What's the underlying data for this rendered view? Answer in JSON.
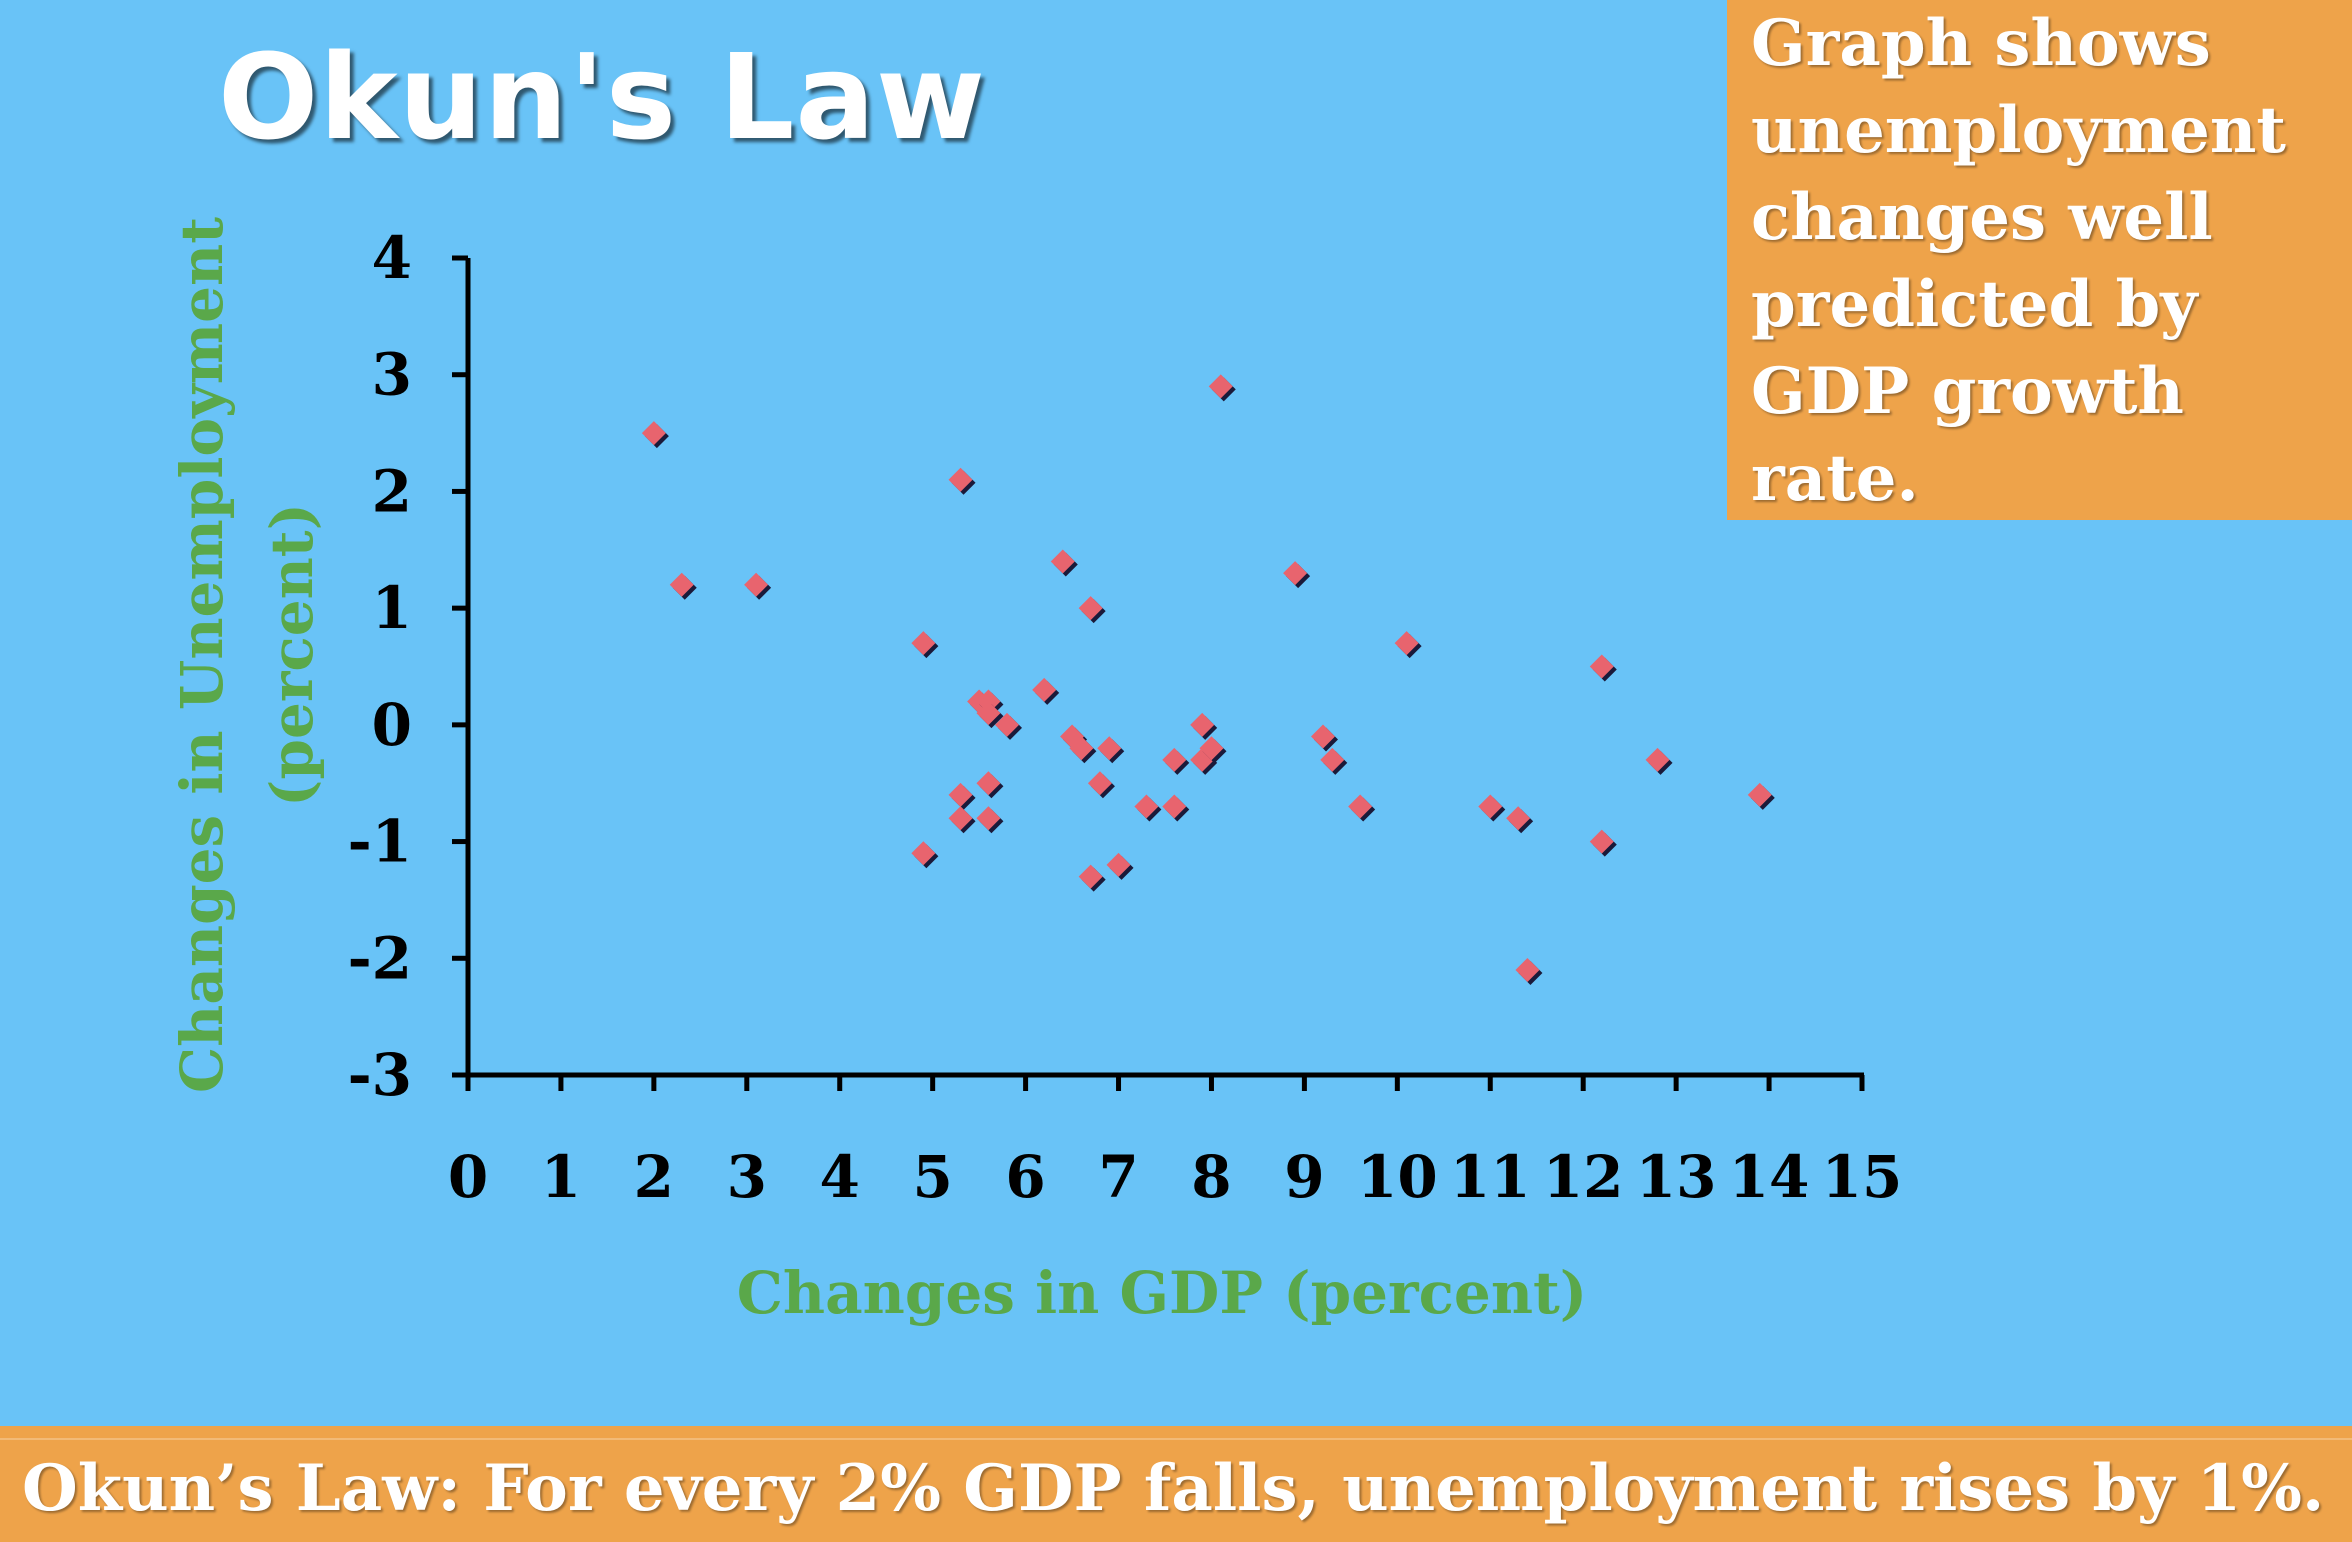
{
  "slide": {
    "title": "Okun's Law",
    "note_lines": [
      "Graph shows",
      "unemployment",
      "changes well",
      "predicted by",
      "GDP growth",
      "rate."
    ],
    "footer": "Okun’s Law: For every 2% GDP falls, unemployment rises by 1%."
  },
  "colors": {
    "background": "#69c3f7",
    "callout": "#eea34a",
    "axis_label": "#5aa84a",
    "marker": "#e8646e",
    "marker_shadow": "#1a1a3a",
    "axis": "#000000"
  },
  "chart_data": {
    "type": "scatter",
    "xlabel": "Changes in GDP (percent)",
    "ylabel_lines": [
      "Changes in Unemployment",
      "(percent)"
    ],
    "xlim": [
      0,
      15
    ],
    "ylim": [
      -3,
      4
    ],
    "xticks": [
      "0",
      "1",
      "2",
      "3",
      "4",
      "5",
      "6",
      "7",
      "8",
      "9",
      "10",
      "11",
      "12",
      "13",
      "14",
      "15"
    ],
    "yticks": [
      "4",
      "3",
      "2",
      "1",
      "0",
      "-1",
      "-2",
      "-3"
    ],
    "grid": false,
    "legend": false,
    "marker": "diamond",
    "points": [
      {
        "x": 2.0,
        "y": 2.5
      },
      {
        "x": 2.3,
        "y": 1.2
      },
      {
        "x": 3.1,
        "y": 1.2
      },
      {
        "x": 4.9,
        "y": 0.7
      },
      {
        "x": 4.9,
        "y": -1.1
      },
      {
        "x": 5.3,
        "y": 2.1
      },
      {
        "x": 5.3,
        "y": -0.6
      },
      {
        "x": 5.3,
        "y": -0.8
      },
      {
        "x": 5.5,
        "y": 0.2
      },
      {
        "x": 5.6,
        "y": 0.2
      },
      {
        "x": 5.6,
        "y": 0.1
      },
      {
        "x": 5.6,
        "y": -0.5
      },
      {
        "x": 5.6,
        "y": -0.8
      },
      {
        "x": 5.8,
        "y": 0.0
      },
      {
        "x": 6.2,
        "y": 0.3
      },
      {
        "x": 6.4,
        "y": 1.4
      },
      {
        "x": 6.5,
        "y": -0.1
      },
      {
        "x": 6.6,
        "y": -0.2
      },
      {
        "x": 6.7,
        "y": 1.0
      },
      {
        "x": 6.7,
        "y": -1.3
      },
      {
        "x": 6.8,
        "y": -0.5
      },
      {
        "x": 6.9,
        "y": -0.2
      },
      {
        "x": 7.0,
        "y": -1.2
      },
      {
        "x": 7.3,
        "y": -0.7
      },
      {
        "x": 7.6,
        "y": -0.3
      },
      {
        "x": 7.6,
        "y": -0.7
      },
      {
        "x": 7.9,
        "y": 0.0
      },
      {
        "x": 7.9,
        "y": -0.3
      },
      {
        "x": 8.0,
        "y": -0.2
      },
      {
        "x": 8.1,
        "y": 2.9
      },
      {
        "x": 8.9,
        "y": 1.3
      },
      {
        "x": 9.2,
        "y": -0.1
      },
      {
        "x": 9.3,
        "y": -0.3
      },
      {
        "x": 9.6,
        "y": -0.7
      },
      {
        "x": 10.1,
        "y": 0.7
      },
      {
        "x": 11.0,
        "y": -0.7
      },
      {
        "x": 11.3,
        "y": -0.8
      },
      {
        "x": 11.4,
        "y": -2.1
      },
      {
        "x": 12.2,
        "y": 0.5
      },
      {
        "x": 12.2,
        "y": -1.0
      },
      {
        "x": 12.8,
        "y": -0.3
      },
      {
        "x": 13.9,
        "y": -0.6
      }
    ]
  }
}
